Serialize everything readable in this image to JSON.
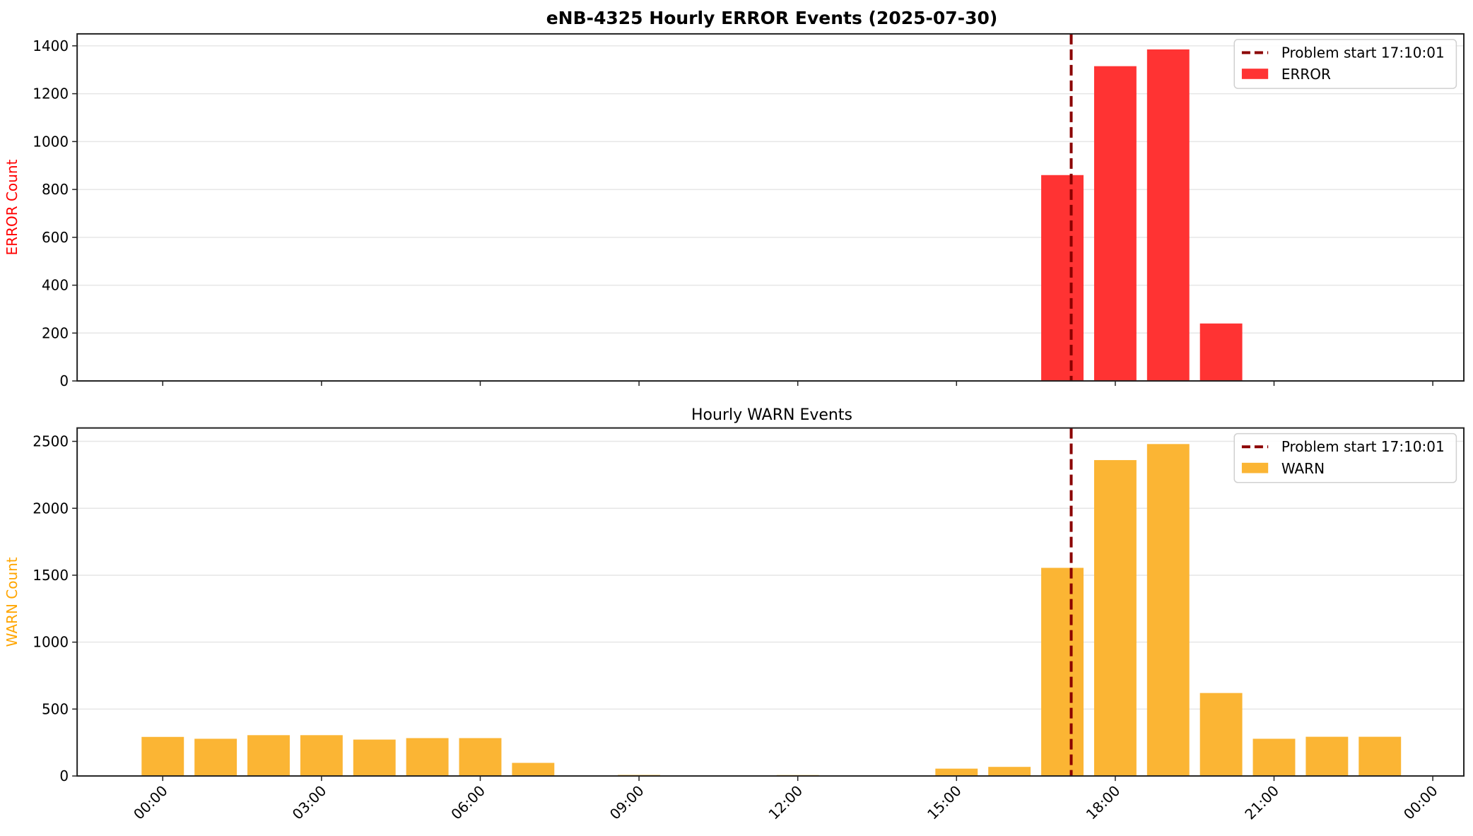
{
  "figure": {
    "title": "eNB-4325 Hourly ERROR Events (2025-07-30)",
    "subplot2_title": "Hourly WARN Events"
  },
  "colors": {
    "error": "#ff3333",
    "warn": "#fbb534",
    "problem_line": "#8b0000",
    "grid": "#e6e6e6",
    "error_label": "#ff0000",
    "warn_label": "#ffa500"
  },
  "chart_data": [
    {
      "type": "bar",
      "title": "eNB-4325 Hourly ERROR Events (2025-07-30)",
      "xlabel": "",
      "ylabel": "ERROR Count",
      "ylim": [
        0,
        1450
      ],
      "yticks": [
        0,
        200,
        400,
        600,
        800,
        1000,
        1200,
        1400
      ],
      "xticks": [
        "00:00",
        "03:00",
        "06:00",
        "09:00",
        "12:00",
        "15:00",
        "18:00",
        "21:00",
        "00:00"
      ],
      "grid": "y",
      "legend_position": "upper right",
      "legend": [
        "Problem start 17:10:01",
        "ERROR"
      ],
      "annotations": [
        {
          "type": "vline",
          "x": "17:10:01",
          "style": "dashed",
          "label": "Problem start 17:10:01"
        }
      ],
      "categories": [
        "00:00",
        "01:00",
        "02:00",
        "03:00",
        "04:00",
        "05:00",
        "06:00",
        "07:00",
        "08:00",
        "09:00",
        "10:00",
        "11:00",
        "12:00",
        "13:00",
        "14:00",
        "15:00",
        "16:00",
        "17:00",
        "18:00",
        "19:00",
        "20:00",
        "21:00",
        "22:00",
        "23:00"
      ],
      "series": [
        {
          "name": "ERROR",
          "values": [
            0,
            0,
            0,
            0,
            0,
            0,
            0,
            0,
            0,
            0,
            0,
            0,
            0,
            0,
            0,
            0,
            0,
            860,
            1315,
            1385,
            240,
            0,
            0,
            0
          ]
        }
      ]
    },
    {
      "type": "bar",
      "title": "Hourly WARN Events",
      "xlabel": "",
      "ylabel": "WARN Count",
      "ylim": [
        0,
        2600
      ],
      "yticks": [
        0,
        500,
        1000,
        1500,
        2000,
        2500
      ],
      "xticks": [
        "00:00",
        "03:00",
        "06:00",
        "09:00",
        "12:00",
        "15:00",
        "18:00",
        "21:00",
        "00:00"
      ],
      "grid": "y",
      "legend_position": "upper right",
      "legend": [
        "Problem start 17:10:01",
        "WARN"
      ],
      "annotations": [
        {
          "type": "vline",
          "x": "17:10:01",
          "style": "dashed",
          "label": "Problem start 17:10:01"
        }
      ],
      "categories": [
        "00:00",
        "01:00",
        "02:00",
        "03:00",
        "04:00",
        "05:00",
        "06:00",
        "07:00",
        "08:00",
        "09:00",
        "10:00",
        "11:00",
        "12:00",
        "13:00",
        "14:00",
        "15:00",
        "16:00",
        "17:00",
        "18:00",
        "19:00",
        "20:00",
        "21:00",
        "22:00",
        "23:00"
      ],
      "series": [
        {
          "name": "WARN",
          "values": [
            292,
            278,
            305,
            305,
            272,
            283,
            283,
            98,
            0,
            8,
            0,
            0,
            7,
            0,
            0,
            55,
            68,
            1555,
            2360,
            2480,
            620,
            278,
            293,
            293
          ]
        }
      ]
    }
  ]
}
